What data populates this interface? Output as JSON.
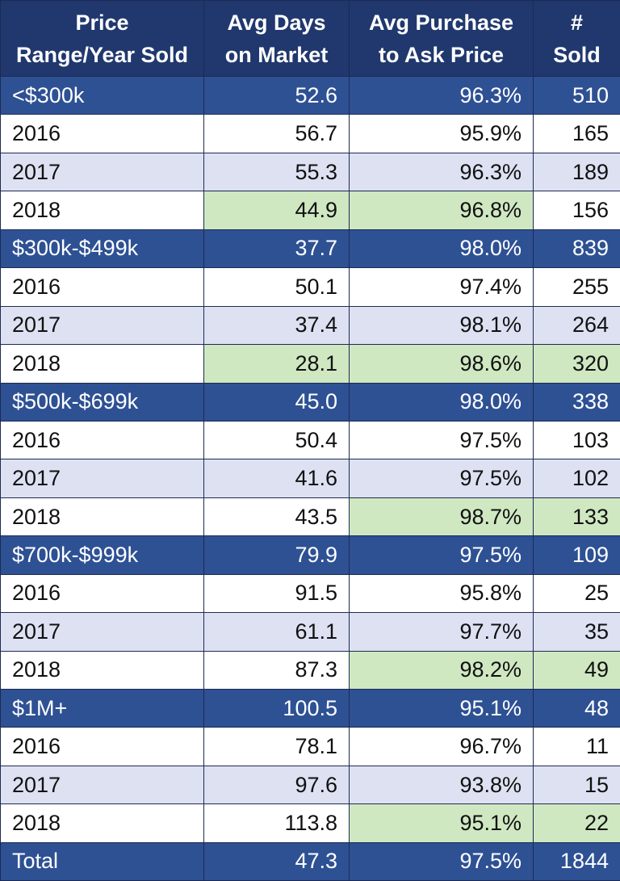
{
  "chart_data": {
    "type": "table",
    "columns": [
      "Price Range/Year Sold",
      "Avg Days on Market",
      "Avg Purchase to Ask Price",
      "# Sold"
    ],
    "header_lines": [
      [
        "Price",
        "Range/Year Sold"
      ],
      [
        "Avg Days",
        "on Market"
      ],
      [
        "Avg Purchase",
        "to Ask Price"
      ],
      [
        "#",
        "Sold"
      ]
    ],
    "rows": [
      {
        "label": "<$300k",
        "days": "52.6",
        "ratio": "96.3%",
        "sold": "510",
        "kind": "group"
      },
      {
        "label": "2016",
        "days": "56.7",
        "ratio": "95.9%",
        "sold": "165",
        "kind": "year"
      },
      {
        "label": "2017",
        "days": "55.3",
        "ratio": "96.3%",
        "sold": "189",
        "kind": "year"
      },
      {
        "label": "2018",
        "days": "44.9",
        "ratio": "96.8%",
        "sold": "156",
        "kind": "year",
        "highlight": [
          "days",
          "ratio"
        ]
      },
      {
        "label": "$300k-$499k",
        "days": "37.7",
        "ratio": "98.0%",
        "sold": "839",
        "kind": "group"
      },
      {
        "label": "2016",
        "days": "50.1",
        "ratio": "97.4%",
        "sold": "255",
        "kind": "year"
      },
      {
        "label": "2017",
        "days": "37.4",
        "ratio": "98.1%",
        "sold": "264",
        "kind": "year"
      },
      {
        "label": "2018",
        "days": "28.1",
        "ratio": "98.6%",
        "sold": "320",
        "kind": "year",
        "highlight": [
          "days",
          "ratio",
          "sold"
        ]
      },
      {
        "label": "$500k-$699k",
        "days": "45.0",
        "ratio": "98.0%",
        "sold": "338",
        "kind": "group"
      },
      {
        "label": "2016",
        "days": "50.4",
        "ratio": "97.5%",
        "sold": "103",
        "kind": "year"
      },
      {
        "label": "2017",
        "days": "41.6",
        "ratio": "97.5%",
        "sold": "102",
        "kind": "year"
      },
      {
        "label": "2018",
        "days": "43.5",
        "ratio": "98.7%",
        "sold": "133",
        "kind": "year",
        "highlight": [
          "ratio",
          "sold"
        ]
      },
      {
        "label": "$700k-$999k",
        "days": "79.9",
        "ratio": "97.5%",
        "sold": "109",
        "kind": "group"
      },
      {
        "label": "2016",
        "days": "91.5",
        "ratio": "95.8%",
        "sold": "25",
        "kind": "year"
      },
      {
        "label": "2017",
        "days": "61.1",
        "ratio": "97.7%",
        "sold": "35",
        "kind": "year"
      },
      {
        "label": "2018",
        "days": "87.3",
        "ratio": "98.2%",
        "sold": "49",
        "kind": "year",
        "highlight": [
          "ratio",
          "sold"
        ]
      },
      {
        "label": "$1M+",
        "days": "100.5",
        "ratio": "95.1%",
        "sold": "48",
        "kind": "group"
      },
      {
        "label": "2016",
        "days": "78.1",
        "ratio": "96.7%",
        "sold": "11",
        "kind": "year"
      },
      {
        "label": "2017",
        "days": "97.6",
        "ratio": "93.8%",
        "sold": "15",
        "kind": "year"
      },
      {
        "label": "2018",
        "days": "113.8",
        "ratio": "95.1%",
        "sold": "22",
        "kind": "year",
        "highlight": [
          "ratio",
          "sold"
        ]
      },
      {
        "label": "Total",
        "days": "47.3",
        "ratio": "97.5%",
        "sold": "1844",
        "kind": "total"
      }
    ],
    "colors": {
      "header": "#20386e",
      "group_row": "#2e5194",
      "alt_row": "#dde1f2",
      "highlight": "#d0e8c2"
    }
  }
}
